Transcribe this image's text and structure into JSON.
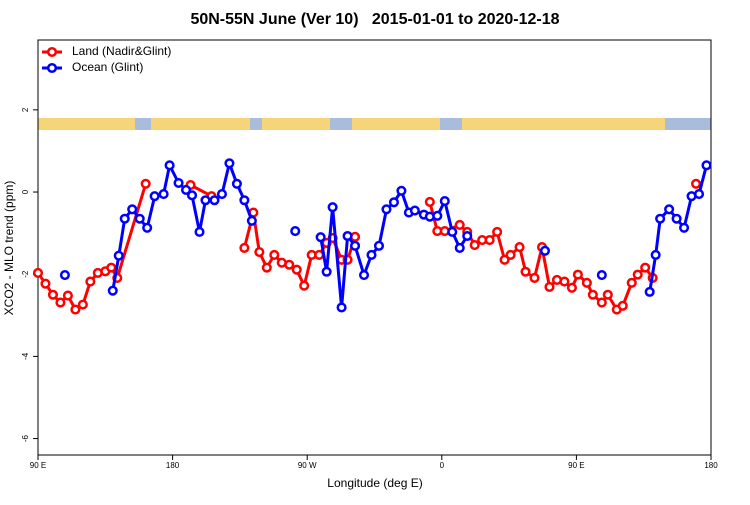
{
  "chart_data": {
    "type": "line",
    "title": "50N-55N June (Ver 10)   2015-01-01 to 2020-12-18",
    "x_label": "Longitude (deg E)",
    "y_label": "XCO2 - MLO trend (ppm)",
    "xlim": [
      90,
      540
    ],
    "xticks": [
      {
        "value": 90,
        "label": "90 E"
      },
      180,
      {
        "value": 270,
        "label": "90 W"
      },
      {
        "value": 360,
        "label": "0"
      },
      {
        "value": 450,
        "label": "90 E"
      },
      {
        "value": 540,
        "label": "180"
      }
    ],
    "ylim": [
      -6.4,
      3.7
    ],
    "yticks": [
      -6,
      -4,
      -2,
      0,
      2
    ],
    "legend": "top-left",
    "series": [
      {
        "name": "Land (Nadir&Glint)",
        "color": "#ff0000",
        "x": [
          90,
          95,
          100,
          105,
          110,
          115,
          120,
          125,
          130,
          135,
          139,
          143,
          162,
          null,
          192,
          206,
          null,
          228,
          234,
          238,
          243,
          248,
          253,
          258,
          263,
          268,
          273,
          278,
          283,
          287,
          293,
          297,
          302,
          null,
          352,
          357,
          362,
          372,
          377,
          382,
          387,
          392,
          397,
          402,
          406,
          412,
          416,
          422,
          427,
          432,
          437,
          442,
          447,
          451,
          457,
          461,
          467,
          471,
          477,
          481,
          487,
          491,
          496,
          501,
          null,
          530
        ],
        "values": [
          -1.97,
          -2.23,
          -2.5,
          -2.69,
          -2.52,
          -2.86,
          -2.74,
          -2.18,
          -1.97,
          -1.93,
          -1.84,
          -2.09,
          0.2,
          null,
          0.17,
          -0.1,
          null,
          -1.36,
          -0.5,
          -1.46,
          -1.84,
          -1.53,
          -1.72,
          -1.77,
          -1.89,
          -2.28,
          -1.53,
          -1.53,
          -1.24,
          -1.12,
          -1.65,
          -1.65,
          -1.09,
          null,
          -0.24,
          -0.95,
          -0.95,
          -0.8,
          -0.97,
          -1.29,
          -1.17,
          -1.17,
          -0.97,
          -1.65,
          -1.53,
          -1.34,
          -1.94,
          -2.09,
          -1.34,
          -2.31,
          -2.14,
          -2.18,
          -2.33,
          -2.01,
          -2.21,
          -2.5,
          -2.69,
          -2.5,
          -2.86,
          -2.77,
          -2.21,
          -2.01,
          -1.84,
          -2.09,
          null,
          0.2
        ]
      },
      {
        "name": "Ocean (Glint)",
        "color": "#0000ff",
        "x": [
          108,
          null,
          140,
          144,
          148,
          153,
          158,
          163,
          168,
          174,
          178,
          184,
          189,
          193,
          198,
          202,
          208,
          213,
          218,
          223,
          228,
          233,
          null,
          262,
          null,
          279,
          283,
          287,
          293,
          297,
          302,
          308,
          313,
          318,
          323,
          328,
          333,
          338,
          342,
          348,
          352,
          357,
          362,
          367,
          372,
          377,
          null,
          429,
          null,
          467,
          null,
          499,
          503,
          506,
          512,
          517,
          522,
          527,
          532,
          537
        ],
        "values": [
          -2.02,
          null,
          -2.4,
          -1.55,
          -0.65,
          -0.42,
          -0.65,
          -0.87,
          -0.1,
          -0.05,
          0.65,
          0.22,
          0.05,
          -0.08,
          -0.97,
          -0.2,
          -0.2,
          -0.05,
          0.7,
          0.2,
          -0.2,
          -0.7,
          null,
          -0.95,
          null,
          -1.1,
          -1.94,
          -0.37,
          -2.81,
          -1.07,
          -1.31,
          -2.02,
          -1.53,
          -1.31,
          -0.42,
          -0.25,
          0.03,
          -0.5,
          -0.45,
          -0.55,
          -0.6,
          -0.58,
          -0.22,
          -0.97,
          -1.36,
          -1.07,
          null,
          -1.43,
          null,
          -2.02,
          null,
          -2.43,
          -1.53,
          -0.65,
          -0.42,
          -0.65,
          -0.87,
          -0.1,
          -0.05,
          0.65
        ]
      }
    ]
  }
}
